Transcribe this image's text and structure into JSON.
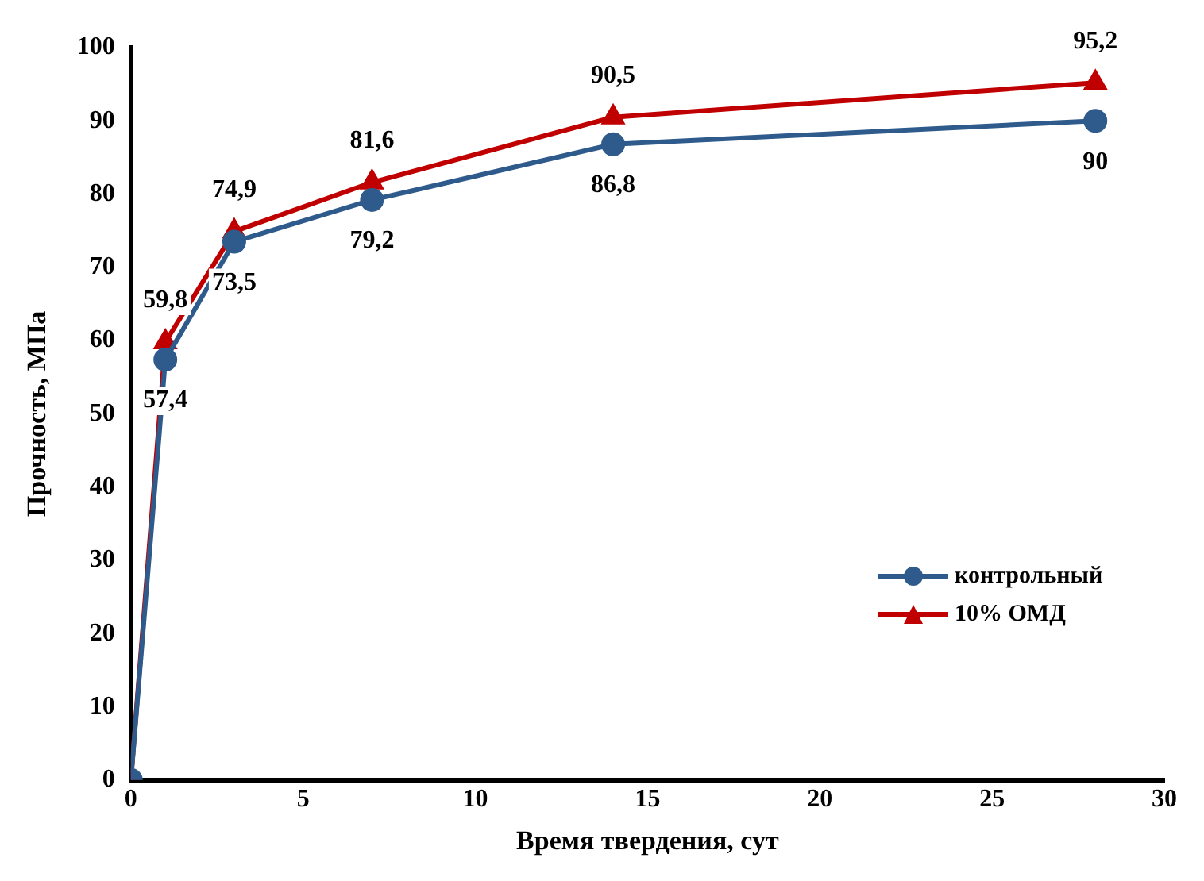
{
  "chart_data": {
    "type": "line",
    "xlabel": "Время твердения, сут",
    "ylabel": "Прочность, МПа",
    "x": [
      0,
      1,
      3,
      7,
      14,
      28
    ],
    "series": [
      {
        "name": "контрольный",
        "color": "#2e5b8c",
        "marker": "circle",
        "values": [
          0,
          57.4,
          73.5,
          79.2,
          86.8,
          90
        ],
        "value_labels": [
          null,
          "57,4",
          "73,5",
          "79,2",
          "86,8",
          "90"
        ]
      },
      {
        "name": "10% ОМД",
        "color": "#c00000",
        "marker": "triangle",
        "values": [
          0,
          59.8,
          74.9,
          81.6,
          90.5,
          95.2
        ],
        "value_labels": [
          null,
          "59,8",
          "74,9",
          "81,6",
          "90,5",
          "95,2"
        ]
      }
    ],
    "xlim": [
      0,
      30
    ],
    "xticks": [
      0,
      5,
      10,
      15,
      20,
      25,
      30
    ],
    "ylim": [
      0,
      100
    ],
    "yticks": [
      0,
      10,
      20,
      30,
      40,
      50,
      60,
      70,
      80,
      90,
      100
    ],
    "grid": false,
    "legend": "bottom right",
    "line_style": "solid"
  }
}
